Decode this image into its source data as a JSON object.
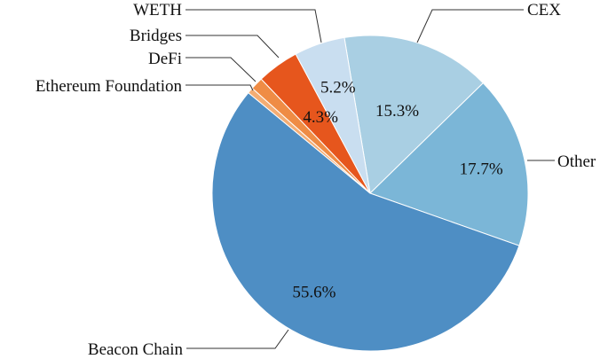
{
  "chart_data": {
    "type": "pie",
    "title": "",
    "direction": "clockwise",
    "slices": [
      {
        "label": "CEX",
        "value": 15.3,
        "pct_label": "15.3%",
        "color": "#a9cfe3"
      },
      {
        "label": "Other",
        "value": 17.7,
        "pct_label": "17.7%",
        "color": "#7bb6d7"
      },
      {
        "label": "Beacon Chain",
        "value": 55.6,
        "pct_label": "55.6%",
        "color": "#4e8ec4"
      },
      {
        "label": "Ethereum Foundation",
        "value": 0.6,
        "pct_label": "",
        "color": "#f4ad74"
      },
      {
        "label": "DeFi",
        "value": 1.3,
        "pct_label": "",
        "color": "#ef8c45"
      },
      {
        "label": "Bridges",
        "value": 4.3,
        "pct_label": "4.3%",
        "color": "#e6561d"
      },
      {
        "label": "WETH",
        "value": 5.2,
        "pct_label": "5.2%",
        "color": "#c9def0"
      }
    ]
  }
}
